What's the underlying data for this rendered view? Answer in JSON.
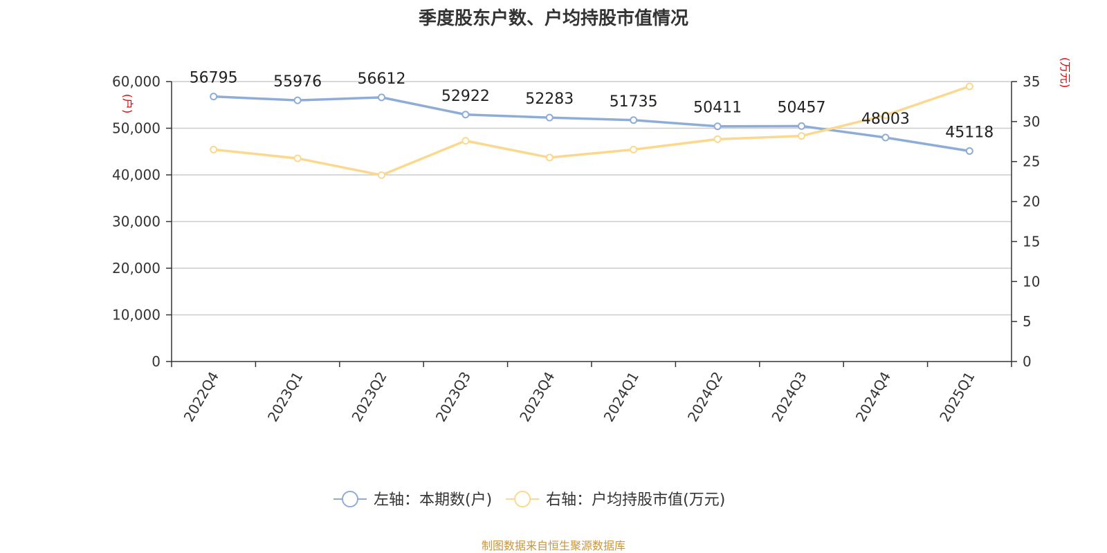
{
  "chart_data": {
    "type": "line",
    "title": "季度股东户数、户均持股市值情况",
    "categories": [
      "2022Q4",
      "2023Q1",
      "2023Q2",
      "2023Q3",
      "2023Q4",
      "2024Q1",
      "2024Q2",
      "2024Q3",
      "2024Q4",
      "2025Q1"
    ],
    "series": [
      {
        "name": "左轴：本期数(户)",
        "axis": "left",
        "color": "#8eacd8",
        "values": [
          56795,
          55976,
          56612,
          52922,
          52283,
          51735,
          50411,
          50457,
          48003,
          45118
        ],
        "labels": [
          "56795",
          "55976",
          "56612",
          "52922",
          "52283",
          "51735",
          "50411",
          "50457",
          "48003",
          "45118"
        ]
      },
      {
        "name": "右轴：户均持股市值(万元)",
        "axis": "right",
        "color": "#fbd88e",
        "values": [
          26.5,
          25.4,
          23.3,
          27.6,
          25.5,
          26.5,
          27.8,
          28.2,
          30.8,
          34.4
        ]
      }
    ],
    "left_axis": {
      "unit": "(户)",
      "ylim": [
        0,
        60000
      ],
      "ticks": [
        "0",
        "10,000",
        "20,000",
        "30,000",
        "40,000",
        "50,000",
        "60,000"
      ]
    },
    "right_axis": {
      "unit": "(万元)",
      "ylim": [
        0,
        35
      ],
      "ticks": [
        "0",
        "5",
        "10",
        "15",
        "20",
        "25",
        "30",
        "35"
      ]
    },
    "grid": true,
    "legend_position": "bottom-center"
  },
  "source": "制图数据来自恒生聚源数据库"
}
